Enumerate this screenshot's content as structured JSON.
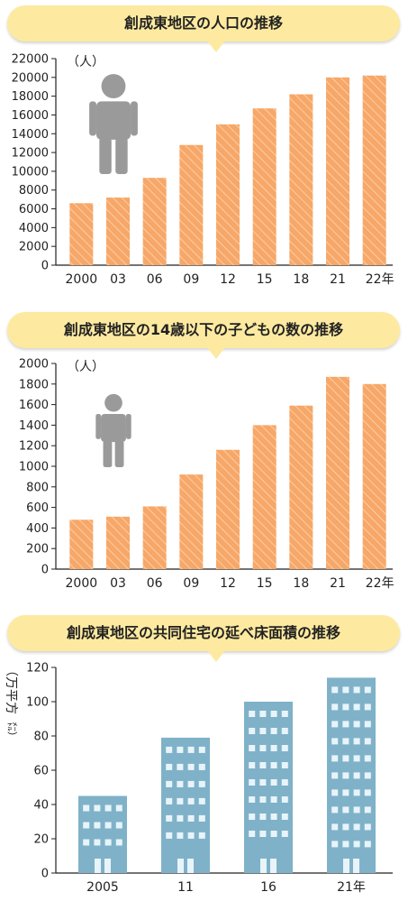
{
  "charts": [
    {
      "type": "bar",
      "title": "創成東地区の人口の推移",
      "unit": "（人）",
      "categories": [
        "2000",
        "03",
        "06",
        "09",
        "12",
        "15",
        "18",
        "21",
        "22年"
      ],
      "values": [
        6600,
        7200,
        9300,
        12800,
        15000,
        16700,
        18200,
        20000,
        20200
      ],
      "ylim": [
        0,
        22000
      ],
      "yticks": [
        0,
        2000,
        4000,
        6000,
        8000,
        10000,
        12000,
        14000,
        16000,
        18000,
        20000,
        22000
      ],
      "bar_color": "#f7a767",
      "icon": "person-icon"
    },
    {
      "type": "bar",
      "title": "創成東地区の14歳以下の子どもの数の推移",
      "unit": "（人）",
      "categories": [
        "2000",
        "03",
        "06",
        "09",
        "12",
        "15",
        "18",
        "21",
        "22年"
      ],
      "values": [
        480,
        510,
        610,
        920,
        1160,
        1400,
        1590,
        1870,
        1800
      ],
      "ylim": [
        0,
        2000
      ],
      "yticks": [
        0,
        200,
        400,
        600,
        800,
        1000,
        1200,
        1400,
        1600,
        1800,
        2000
      ],
      "bar_color": "#f7a767",
      "icon": "child-icon"
    },
    {
      "type": "bar",
      "title": "創成東地区の共同住宅の延べ床面積の推移",
      "unit_main": "（万平方",
      "unit_small": "㍍）",
      "categories": [
        "2005",
        "11",
        "16",
        "21年"
      ],
      "values": [
        45,
        79,
        100,
        114
      ],
      "ylim": [
        0,
        120
      ],
      "yticks": [
        0,
        20,
        40,
        60,
        80,
        100,
        120
      ],
      "bar_color": "#7fb2c8",
      "icon": "building-icon"
    }
  ]
}
